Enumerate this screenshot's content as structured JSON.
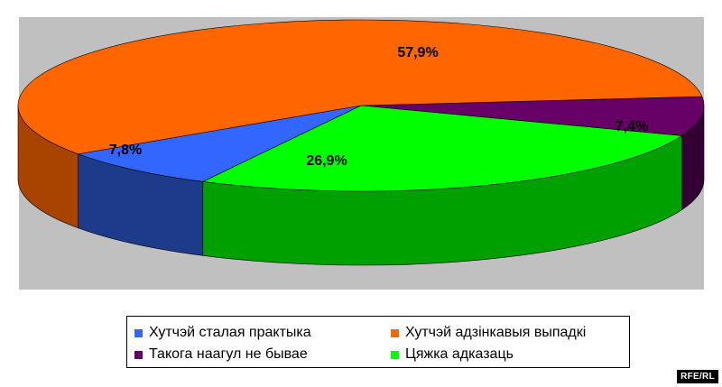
{
  "chart_data": {
    "type": "pie",
    "slices": [
      {
        "name": "Хутчэй адзінкавыя выпадкі",
        "value": 57.9,
        "label": "57,9%",
        "color": "#ff6600",
        "side": "#a84300"
      },
      {
        "name": "Такога наагул не бывае",
        "value": 7.4,
        "label": "7,4%",
        "color": "#660066",
        "side": "#330033"
      },
      {
        "name": "Цяжка адказаць",
        "value": 26.9,
        "label": "26,9%",
        "color": "#00ff00",
        "side": "#00a000"
      },
      {
        "name": "Хутчэй сталая практыка",
        "value": 7.8,
        "label": "7,8%",
        "color": "#3366ff",
        "side": "#1e3a8a"
      }
    ],
    "legend": {
      "position": "bottom",
      "items": [
        {
          "label": "Хутчэй сталая практыка",
          "color": "#3366ff"
        },
        {
          "label": "Хутчэй адзінкавыя выпадкі",
          "color": "#ff6600"
        },
        {
          "label": "Такога наагул не бывае",
          "color": "#660066"
        },
        {
          "label": "Цяжка адказаць",
          "color": "#00ff00"
        }
      ]
    }
  },
  "credit": "RFE/RL"
}
